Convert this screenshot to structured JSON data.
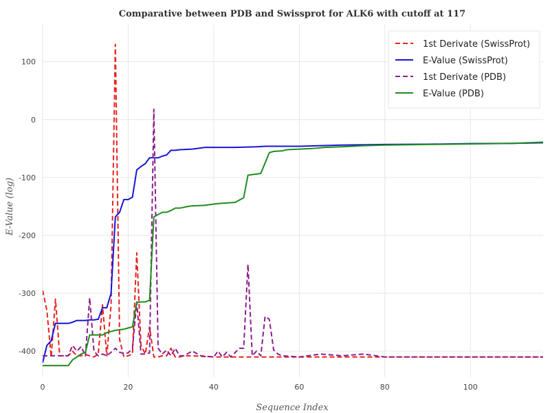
{
  "chart_data": {
    "type": "line",
    "title": "Comparative between PDB and Swissprot for ALK6 with cutoff at 117",
    "xlabel": "Sequence Index",
    "ylabel": "E-Value (log)",
    "xlim": [
      0,
      117
    ],
    "ylim": [
      -445,
      165
    ],
    "x_ticks": [
      0,
      20,
      40,
      60,
      80,
      100
    ],
    "y_ticks": [
      100,
      0,
      -100,
      -200,
      -300,
      -400
    ],
    "y_tick_labels": [
      "100",
      "0",
      "-100",
      "-200",
      "-300",
      "-400"
    ],
    "grid": true,
    "legend_position": "top-right",
    "series": [
      {
        "name": "1st Derivate (SwissProt)",
        "color": "#e8211d",
        "dash": "dashed",
        "points": [
          [
            0,
            -295
          ],
          [
            1,
            -330
          ],
          [
            2,
            -410
          ],
          [
            3,
            -310
          ],
          [
            4,
            -408
          ],
          [
            5,
            -408
          ],
          [
            6,
            -408
          ],
          [
            7,
            -400
          ],
          [
            8,
            -408
          ],
          [
            9,
            -408
          ],
          [
            10,
            -406
          ],
          [
            11,
            -408
          ],
          [
            12,
            -410
          ],
          [
            13,
            -405
          ],
          [
            14,
            -320
          ],
          [
            15,
            -408
          ],
          [
            16,
            -320
          ],
          [
            17,
            130
          ],
          [
            18,
            -380
          ],
          [
            19,
            -410
          ],
          [
            20,
            -408
          ],
          [
            21,
            -405
          ],
          [
            22,
            -230
          ],
          [
            23,
            -390
          ],
          [
            24,
            -405
          ],
          [
            25,
            -358
          ],
          [
            26,
            -410
          ],
          [
            27,
            -410
          ],
          [
            28,
            -408
          ],
          [
            29,
            -408
          ],
          [
            30,
            -395
          ],
          [
            31,
            -410
          ],
          [
            32,
            -410
          ],
          [
            33,
            -408
          ],
          [
            35,
            -408
          ],
          [
            40,
            -410
          ],
          [
            50,
            -410
          ],
          [
            60,
            -410
          ],
          [
            70,
            -410
          ],
          [
            80,
            -410
          ],
          [
            90,
            -410
          ],
          [
            100,
            -410
          ],
          [
            110,
            -410
          ],
          [
            117,
            -410
          ]
        ]
      },
      {
        "name": "E-Value (SwissProt)",
        "color": "#1515d4",
        "dash": "solid",
        "points": [
          [
            0,
            -420
          ],
          [
            1,
            -390
          ],
          [
            2,
            -382
          ],
          [
            3,
            -352
          ],
          [
            4,
            -352
          ],
          [
            5,
            -352
          ],
          [
            6,
            -352
          ],
          [
            7,
            -350
          ],
          [
            8,
            -347
          ],
          [
            9,
            -347
          ],
          [
            10,
            -347
          ],
          [
            11,
            -346
          ],
          [
            12,
            -346
          ],
          [
            13,
            -345
          ],
          [
            14,
            -325
          ],
          [
            15,
            -325
          ],
          [
            16,
            -300
          ],
          [
            17,
            -168
          ],
          [
            18,
            -160
          ],
          [
            19,
            -138
          ],
          [
            20,
            -138
          ],
          [
            21,
            -134
          ],
          [
            22,
            -87
          ],
          [
            23,
            -81
          ],
          [
            24,
            -76
          ],
          [
            25,
            -66
          ],
          [
            26,
            -66
          ],
          [
            27,
            -66
          ],
          [
            28,
            -63
          ],
          [
            29,
            -61
          ],
          [
            30,
            -53
          ],
          [
            31,
            -53
          ],
          [
            32,
            -52
          ],
          [
            35,
            -51
          ],
          [
            38,
            -48
          ],
          [
            45,
            -48
          ],
          [
            50,
            -47
          ],
          [
            52,
            -46
          ],
          [
            60,
            -46
          ],
          [
            65,
            -45
          ],
          [
            70,
            -44
          ],
          [
            80,
            -43
          ],
          [
            90,
            -42.5
          ],
          [
            100,
            -41.5
          ],
          [
            110,
            -41
          ],
          [
            117,
            -40
          ]
        ]
      },
      {
        "name": "1st Derivate (PDB)",
        "color": "#8c1c8c",
        "dash": "dashed",
        "points": [
          [
            0,
            -408
          ],
          [
            1,
            -408
          ],
          [
            2,
            -408
          ],
          [
            3,
            -408
          ],
          [
            4,
            -408
          ],
          [
            5,
            -408
          ],
          [
            6,
            -408
          ],
          [
            7,
            -390
          ],
          [
            8,
            -400
          ],
          [
            9,
            -392
          ],
          [
            10,
            -408
          ],
          [
            11,
            -308
          ],
          [
            12,
            -400
          ],
          [
            13,
            -408
          ],
          [
            14,
            -405
          ],
          [
            15,
            -408
          ],
          [
            16,
            -402
          ],
          [
            17,
            -395
          ],
          [
            18,
            -402
          ],
          [
            19,
            -404
          ],
          [
            20,
            -403
          ],
          [
            21,
            -395
          ],
          [
            22,
            -315
          ],
          [
            23,
            -405
          ],
          [
            24,
            -405
          ],
          [
            25,
            -403
          ],
          [
            26,
            18
          ],
          [
            27,
            -395
          ],
          [
            28,
            -405
          ],
          [
            29,
            -398
          ],
          [
            30,
            -408
          ],
          [
            31,
            -395
          ],
          [
            32,
            -408
          ],
          [
            33,
            -408
          ],
          [
            35,
            -400
          ],
          [
            37,
            -408
          ],
          [
            40,
            -410
          ],
          [
            41,
            -400
          ],
          [
            42,
            -410
          ],
          [
            43,
            -402
          ],
          [
            44,
            -410
          ],
          [
            46,
            -395
          ],
          [
            47,
            -395
          ],
          [
            48,
            -250
          ],
          [
            49,
            -408
          ],
          [
            50,
            -400
          ],
          [
            51,
            -408
          ],
          [
            52,
            -340
          ],
          [
            53,
            -345
          ],
          [
            54,
            -398
          ],
          [
            55,
            -405
          ],
          [
            56,
            -408
          ],
          [
            60,
            -410
          ],
          [
            65,
            -405
          ],
          [
            70,
            -408
          ],
          [
            75,
            -405
          ],
          [
            80,
            -410
          ],
          [
            90,
            -410
          ],
          [
            100,
            -410
          ],
          [
            110,
            -410
          ],
          [
            117,
            -410
          ]
        ]
      },
      {
        "name": "E-Value (PDB)",
        "color": "#1f8c1f",
        "dash": "solid",
        "points": [
          [
            0,
            -425
          ],
          [
            1,
            -425
          ],
          [
            2,
            -425
          ],
          [
            3,
            -425
          ],
          [
            4,
            -425
          ],
          [
            5,
            -425
          ],
          [
            6,
            -425
          ],
          [
            7,
            -415
          ],
          [
            8,
            -410
          ],
          [
            9,
            -405
          ],
          [
            10,
            -402
          ],
          [
            11,
            -372
          ],
          [
            12,
            -372
          ],
          [
            13,
            -372
          ],
          [
            14,
            -372
          ],
          [
            15,
            -368
          ],
          [
            16,
            -366
          ],
          [
            17,
            -364
          ],
          [
            18,
            -363
          ],
          [
            19,
            -362
          ],
          [
            20,
            -360
          ],
          [
            21,
            -358
          ],
          [
            22,
            -316
          ],
          [
            23,
            -315
          ],
          [
            24,
            -315
          ],
          [
            25,
            -312
          ],
          [
            26,
            -168
          ],
          [
            27,
            -164
          ],
          [
            28,
            -160
          ],
          [
            29,
            -160
          ],
          [
            30,
            -157
          ],
          [
            31,
            -153
          ],
          [
            32,
            -153
          ],
          [
            34,
            -150
          ],
          [
            35,
            -149
          ],
          [
            38,
            -148
          ],
          [
            40,
            -146
          ],
          [
            41,
            -145
          ],
          [
            43,
            -144
          ],
          [
            45,
            -143
          ],
          [
            47,
            -135
          ],
          [
            48,
            -96
          ],
          [
            51,
            -93
          ],
          [
            53,
            -57
          ],
          [
            54,
            -55
          ],
          [
            56,
            -54
          ],
          [
            57,
            -52
          ],
          [
            60,
            -51
          ],
          [
            63,
            -50
          ],
          [
            66,
            -48
          ],
          [
            70,
            -47
          ],
          [
            75,
            -45
          ],
          [
            80,
            -44
          ],
          [
            90,
            -43
          ],
          [
            100,
            -42
          ],
          [
            110,
            -41
          ],
          [
            117,
            -39
          ]
        ]
      }
    ]
  }
}
